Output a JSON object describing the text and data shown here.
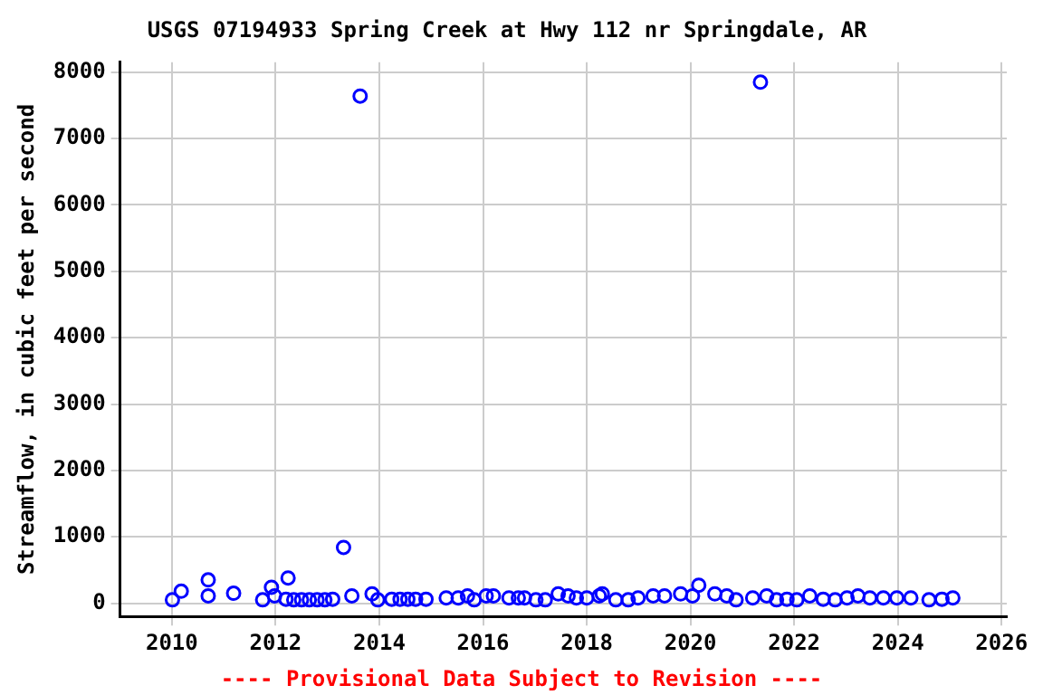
{
  "chart_data": {
    "type": "scatter",
    "title": "USGS 07194933 Spring Creek at Hwy 112 nr Springdale, AR",
    "ylabel": "Streamflow, in cubic feet per second",
    "annotations": [
      "---- Provisional Data Subject to Revision ----"
    ],
    "x": [
      2010.01,
      2010.18,
      2010.7,
      2010.7,
      2011.19,
      2011.75,
      2011.92,
      2011.98,
      2012.24,
      2012.2,
      2012.35,
      2012.5,
      2012.65,
      2012.8,
      2012.95,
      2013.1,
      2013.31,
      2013.47,
      2013.63,
      2013.86,
      2013.97,
      2014.24,
      2014.4,
      2014.55,
      2014.7,
      2014.9,
      2015.29,
      2015.52,
      2015.7,
      2015.83,
      2016.06,
      2016.2,
      2016.5,
      2016.68,
      2016.8,
      2017.02,
      2017.2,
      2017.45,
      2017.64,
      2017.8,
      2018.0,
      2018.24,
      2018.3,
      2018.56,
      2018.8,
      2018.99,
      2019.28,
      2019.5,
      2019.81,
      2020.04,
      2020.16,
      2020.47,
      2020.7,
      2020.88,
      2021.2,
      2021.35,
      2021.47,
      2021.66,
      2021.86,
      2022.05,
      2022.3,
      2022.56,
      2022.79,
      2023.02,
      2023.23,
      2023.46,
      2023.72,
      2023.98,
      2024.25,
      2024.6,
      2024.85,
      2025.06
    ],
    "series": [
      {
        "color": "#0000ff",
        "values": [
          50,
          180,
          350,
          110,
          150,
          50,
          240,
          110,
          380,
          60,
          50,
          50,
          50,
          50,
          50,
          60,
          840,
          110,
          7640,
          140,
          50,
          60,
          60,
          60,
          60,
          60,
          80,
          80,
          110,
          50,
          110,
          110,
          80,
          80,
          80,
          50,
          50,
          140,
          110,
          80,
          80,
          110,
          140,
          50,
          50,
          80,
          110,
          110,
          140,
          110,
          270,
          140,
          110,
          50,
          80,
          7850,
          110,
          50,
          60,
          50,
          110,
          60,
          50,
          80,
          110,
          80,
          80,
          80,
          80,
          50,
          60,
          80
        ]
      }
    ],
    "xlim": [
      2009,
      2026.1
    ],
    "ylim": [
      -200,
      8150
    ],
    "xticks": [
      2010,
      2012,
      2014,
      2016,
      2018,
      2020,
      2022,
      2024,
      2026
    ],
    "yticks": [
      0,
      1000,
      2000,
      3000,
      4000,
      5000,
      6000,
      7000,
      8000
    ],
    "grid": true,
    "marker": "circle",
    "legend": false
  }
}
